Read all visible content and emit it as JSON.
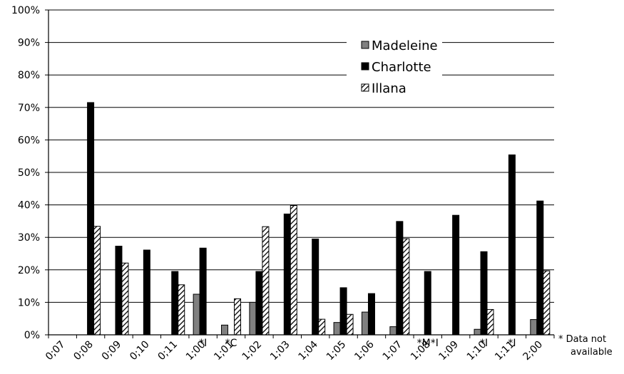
{
  "chart_data": {
    "type": "bar",
    "categories": [
      "0;07",
      "0;08",
      "0;09",
      "0;10",
      "0;11",
      "1;00",
      "1;01",
      "1;02",
      "1;03",
      "1;04",
      "1;05",
      "1;06",
      "1;07",
      "1;08",
      "1;09",
      "1;10",
      "1;11",
      "2;00"
    ],
    "series": [
      {
        "name": "Madeleine",
        "values": [
          0,
          0,
          0,
          0,
          0,
          0.125,
          0.03,
          0.1,
          0,
          0,
          0.038,
          0.07,
          0.025,
          0,
          0,
          0.017,
          0,
          0.047
        ],
        "color": "#808080",
        "pattern": "solid"
      },
      {
        "name": "Charlotte",
        "values": [
          0,
          0.715,
          0.273,
          0.261,
          0.195,
          0.267,
          0,
          0.195,
          0.372,
          0.295,
          0.145,
          0.127,
          0.349,
          0.195,
          0.368,
          0.256,
          0.554,
          0.412
        ],
        "color": "#000000",
        "pattern": "solid"
      },
      {
        "name": "Illana",
        "values": [
          0,
          0.334,
          0.221,
          0,
          0.154,
          0,
          0.111,
          0.333,
          0.398,
          0.048,
          0.063,
          0,
          0.296,
          0,
          0,
          0.078,
          0,
          0.197
        ],
        "color": "#000000",
        "pattern": "diagonal-hatch"
      }
    ],
    "ylim": [
      0,
      1
    ],
    "yticks": [
      "0%",
      "10%",
      "20%",
      "30%",
      "40%",
      "50%",
      "60%",
      "70%",
      "80%",
      "90%",
      "100%"
    ],
    "grid": true,
    "legend": "top-right",
    "annotations": [
      {
        "category": "1;00",
        "text": "*I"
      },
      {
        "category": "1;01",
        "text": "*C"
      },
      {
        "category": "1;08",
        "text": "*M*I"
      },
      {
        "category": "1;10",
        "text": "*I"
      },
      {
        "category": "1;11",
        "text": "*I"
      }
    ],
    "footnote": [
      "* Data not",
      "available"
    ]
  }
}
